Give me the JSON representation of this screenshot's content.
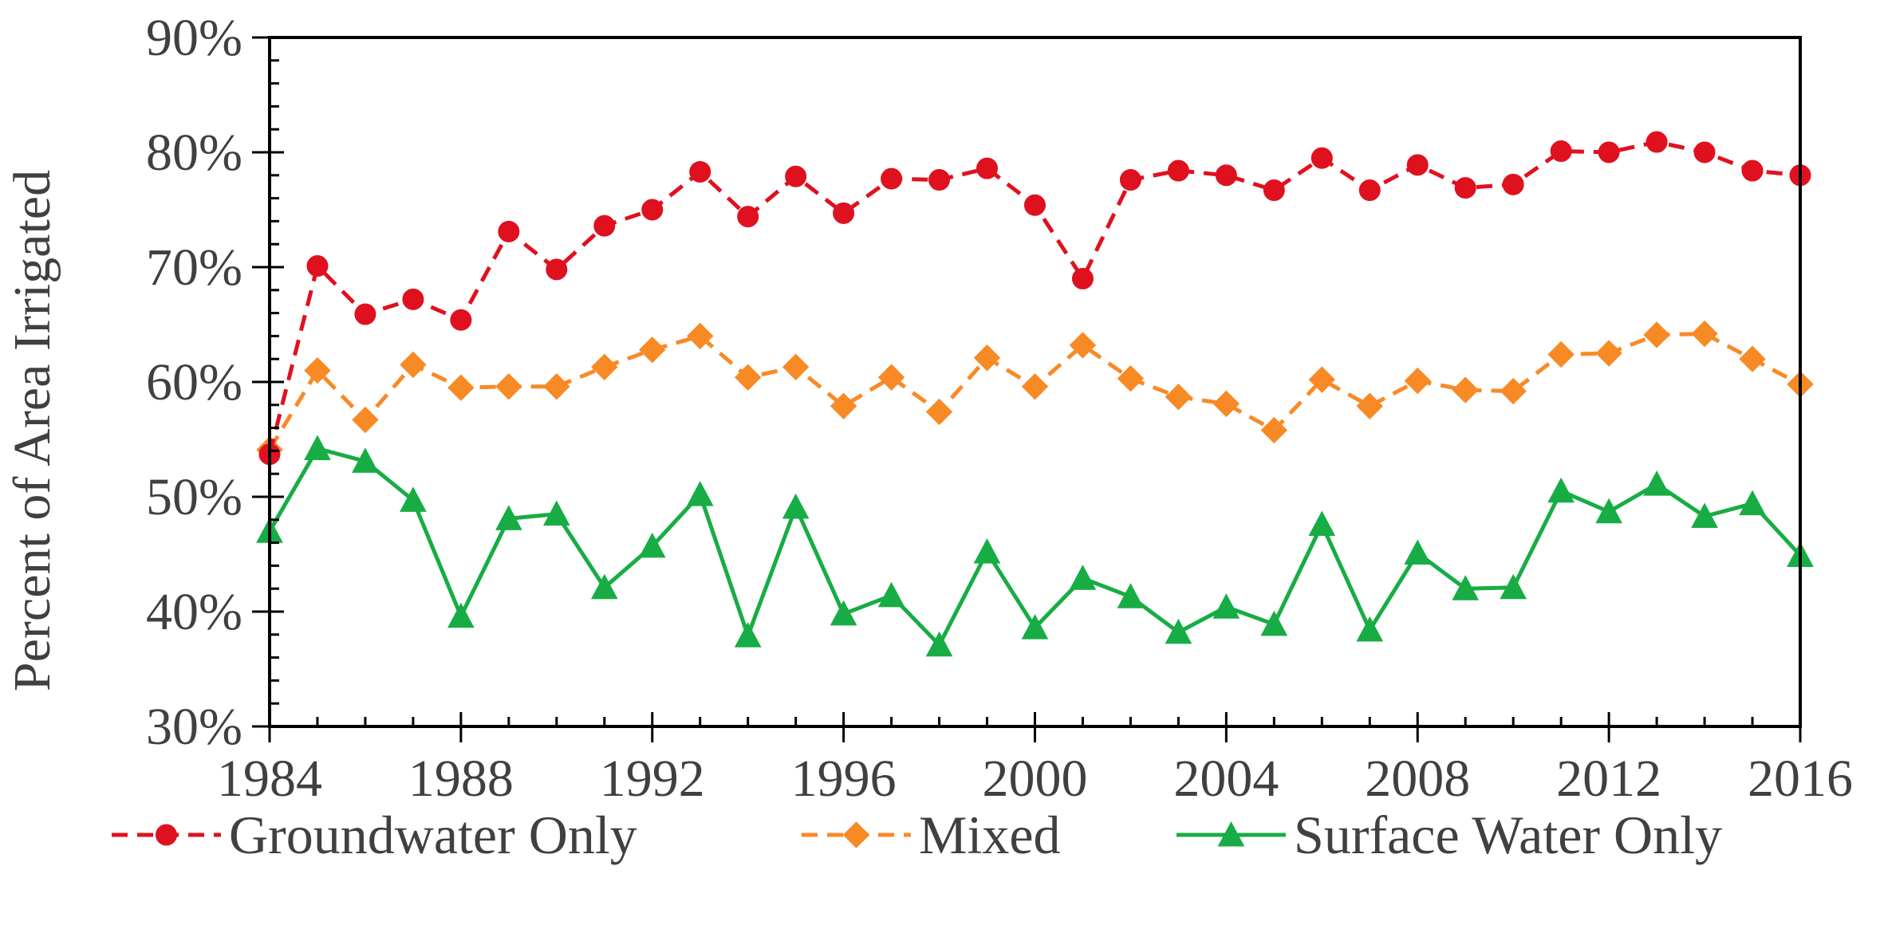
{
  "chart_data": {
    "type": "line",
    "title": "",
    "xlabel": "",
    "ylabel": "Percent of Area Irrigated",
    "xlim": [
      1984,
      2016
    ],
    "ylim": [
      30,
      90
    ],
    "x_ticks": [
      "1984",
      "1988",
      "1992",
      "1996",
      "2000",
      "2004",
      "2008",
      "2012",
      "2016"
    ],
    "y_ticks": [
      "30%",
      "40%",
      "50%",
      "60%",
      "70%",
      "80%",
      "90%"
    ],
    "legend_position": "bottom",
    "x": [
      1984,
      1985,
      1986,
      1987,
      1988,
      1989,
      1990,
      1991,
      1992,
      1993,
      1994,
      1995,
      1996,
      1997,
      1998,
      1999,
      2000,
      2001,
      2002,
      2003,
      2004,
      2005,
      2006,
      2007,
      2008,
      2009,
      2010,
      2011,
      2012,
      2013,
      2014,
      2015,
      2016
    ],
    "series": [
      {
        "name": "Groundwater Only",
        "color": "#e0111f",
        "line_style": "dashed",
        "marker": "circle",
        "values": [
          53.7,
          70.1,
          65.9,
          67.2,
          65.4,
          73.1,
          69.8,
          73.6,
          75.0,
          78.3,
          74.4,
          77.9,
          74.7,
          77.7,
          77.6,
          78.6,
          75.4,
          69.0,
          77.6,
          78.4,
          78.0,
          76.7,
          79.5,
          76.7,
          78.9,
          76.9,
          77.2,
          80.1,
          80.0,
          80.9,
          80.0,
          78.4,
          78.0
        ]
      },
      {
        "name": "Mixed",
        "color": "#f88a26",
        "line_style": "dashed",
        "marker": "diamond",
        "values": [
          54.1,
          61.0,
          56.7,
          61.5,
          59.5,
          59.6,
          59.6,
          61.3,
          62.8,
          64.0,
          60.4,
          61.3,
          57.9,
          60.4,
          57.4,
          62.1,
          59.6,
          63.2,
          60.3,
          58.7,
          58.1,
          55.8,
          60.2,
          57.9,
          60.1,
          59.3,
          59.2,
          62.4,
          62.5,
          64.1,
          64.2,
          62.0,
          59.8
        ]
      },
      {
        "name": "Surface Water Only",
        "color": "#17ad44",
        "line_style": "solid",
        "marker": "triangle",
        "values": [
          47.0,
          54.2,
          53.1,
          49.7,
          39.6,
          48.1,
          48.5,
          42.1,
          45.7,
          50.2,
          37.9,
          49.1,
          39.8,
          41.4,
          37.1,
          45.2,
          38.6,
          42.9,
          41.3,
          38.2,
          40.4,
          38.9,
          47.6,
          38.4,
          45.1,
          42.0,
          42.1,
          50.5,
          48.7,
          51.1,
          48.3,
          49.4,
          44.9
        ]
      }
    ]
  }
}
